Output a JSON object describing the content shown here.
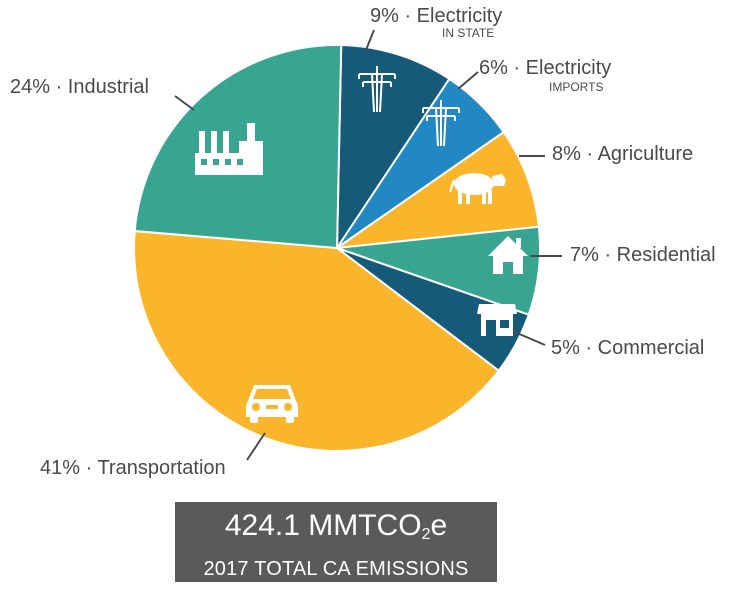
{
  "chart_data": {
    "type": "pie",
    "categories": [
      "Electricity",
      "Electricity",
      "Agriculture",
      "Residential",
      "Commercial",
      "Transportation",
      "Industrial"
    ],
    "slices": [
      {
        "label": "9% · Electricity",
        "sublabel": "IN STATE",
        "value": 9,
        "color": "#155a79",
        "icon": "power-tower-icon"
      },
      {
        "label": "6% · Electricity",
        "sublabel": "IMPORTS",
        "value": 6,
        "color": "#2188c4",
        "icon": "power-tower-icon"
      },
      {
        "label": "8% · Agriculture",
        "sublabel": "",
        "value": 8,
        "color": "#fbb52a",
        "icon": "cow-icon"
      },
      {
        "label": "7% · Residential",
        "sublabel": "",
        "value": 7,
        "color": "#38a590",
        "icon": "house-icon"
      },
      {
        "label": "5% · Commercial",
        "sublabel": "",
        "value": 5,
        "color": "#155a79",
        "icon": "storefront-icon"
      },
      {
        "label": "41% · Transportation",
        "sublabel": "",
        "value": 41,
        "color": "#fbb52a",
        "icon": "car-icon"
      },
      {
        "label": "24% · Industrial",
        "sublabel": "",
        "value": 24,
        "color": "#38a590",
        "icon": "factory-icon"
      }
    ],
    "title": "",
    "legend": "none"
  },
  "total": {
    "value": "424.1 MMTCO",
    "subscript": "2",
    "suffix": "e",
    "caption": "2017 TOTAL CA EMISSIONS"
  }
}
